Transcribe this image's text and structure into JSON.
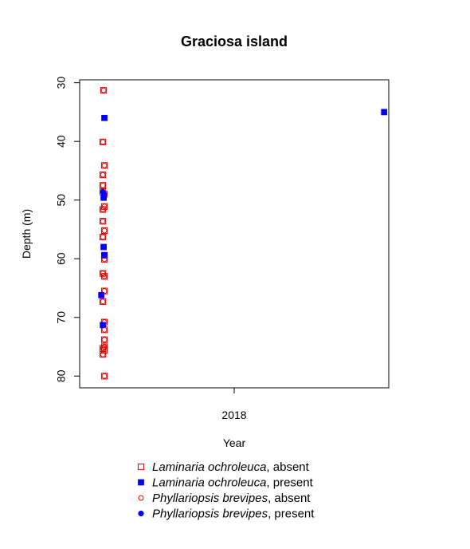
{
  "chart_data": {
    "type": "scatter",
    "title": "Graciosa island",
    "xlabel": "Year",
    "ylabel": "Depth (m)",
    "x_ticks": [
      "2018"
    ],
    "y_ticks": [
      30,
      40,
      50,
      60,
      70,
      80
    ],
    "ylim": [
      82,
      29.5
    ],
    "y_reversed": true,
    "grid": false,
    "legend_position": "bottom",
    "series": [
      {
        "species": "Laminaria ochroleuca",
        "status": "absent",
        "marker": "open-square",
        "color": "#e00000",
        "points": [
          {
            "x": -0.845,
            "y": 31.3
          },
          {
            "x": -0.85,
            "y": 40.1
          },
          {
            "x": -0.84,
            "y": 44.1
          },
          {
            "x": -0.85,
            "y": 45.7
          },
          {
            "x": -0.85,
            "y": 47.5
          },
          {
            "x": -0.85,
            "y": 48.6
          },
          {
            "x": -0.84,
            "y": 49.0
          },
          {
            "x": -0.84,
            "y": 51.1
          },
          {
            "x": -0.85,
            "y": 51.6
          },
          {
            "x": -0.85,
            "y": 53.6
          },
          {
            "x": -0.84,
            "y": 55.2
          },
          {
            "x": -0.85,
            "y": 56.3
          },
          {
            "x": -0.84,
            "y": 59.4
          },
          {
            "x": -0.84,
            "y": 60.1
          },
          {
            "x": -0.85,
            "y": 62.5
          },
          {
            "x": -0.84,
            "y": 63.0
          },
          {
            "x": -0.84,
            "y": 65.5
          },
          {
            "x": -0.85,
            "y": 67.3
          },
          {
            "x": -0.84,
            "y": 70.8
          },
          {
            "x": -0.84,
            "y": 72.1
          },
          {
            "x": -0.84,
            "y": 73.8
          },
          {
            "x": -0.84,
            "y": 75.0
          },
          {
            "x": -0.84,
            "y": 75.6
          },
          {
            "x": -0.85,
            "y": 75.3
          },
          {
            "x": -0.85,
            "y": 76.3
          },
          {
            "x": -0.84,
            "y": 80.0
          }
        ]
      },
      {
        "species": "Laminaria ochroleuca",
        "status": "present",
        "marker": "filled-square",
        "color": "#0000ff",
        "points": [
          {
            "x": -0.84,
            "y": 36.0
          },
          {
            "x": -0.845,
            "y": 49.6
          },
          {
            "x": -0.845,
            "y": 58.0
          },
          {
            "x": -0.84,
            "y": 59.4
          },
          {
            "x": -0.86,
            "y": 66.2
          },
          {
            "x": -0.85,
            "y": 71.3
          },
          {
            "x": 0.97,
            "y": 35.0
          }
        ]
      },
      {
        "species": "Phyllariopsis brevipes",
        "status": "absent",
        "marker": "open-circle",
        "color": "#e00000",
        "points": [
          {
            "x": -0.845,
            "y": 31.3
          },
          {
            "x": -0.85,
            "y": 40.1
          },
          {
            "x": -0.84,
            "y": 44.1
          },
          {
            "x": -0.85,
            "y": 45.7
          },
          {
            "x": -0.85,
            "y": 47.5
          },
          {
            "x": -0.84,
            "y": 51.1
          },
          {
            "x": -0.85,
            "y": 51.6
          },
          {
            "x": -0.85,
            "y": 53.6
          },
          {
            "x": -0.84,
            "y": 55.2
          },
          {
            "x": -0.85,
            "y": 56.3
          },
          {
            "x": -0.84,
            "y": 60.1
          },
          {
            "x": -0.85,
            "y": 62.5
          },
          {
            "x": -0.84,
            "y": 63.0
          },
          {
            "x": -0.84,
            "y": 65.5
          },
          {
            "x": -0.85,
            "y": 67.3
          },
          {
            "x": -0.84,
            "y": 70.8
          },
          {
            "x": -0.84,
            "y": 72.1
          },
          {
            "x": -0.84,
            "y": 73.8
          },
          {
            "x": -0.84,
            "y": 75.0
          },
          {
            "x": -0.85,
            "y": 75.3
          },
          {
            "x": -0.85,
            "y": 76.3
          },
          {
            "x": -0.84,
            "y": 80.0
          }
        ]
      },
      {
        "species": "Phyllariopsis brevipes",
        "status": "present",
        "marker": "filled-circle",
        "color": "#0000ff",
        "points": [
          {
            "x": -0.84,
            "y": 36.0
          },
          {
            "x": -0.85,
            "y": 48.6
          },
          {
            "x": -0.84,
            "y": 49.0
          },
          {
            "x": -0.845,
            "y": 49.6
          },
          {
            "x": -0.845,
            "y": 58.0
          },
          {
            "x": -0.84,
            "y": 59.4
          },
          {
            "x": -0.86,
            "y": 66.2
          },
          {
            "x": -0.85,
            "y": 71.3
          },
          {
            "x": 0.97,
            "y": 35.0
          }
        ]
      }
    ],
    "legend": [
      {
        "species": "Laminaria ochroleuca",
        "suffix": ", absent",
        "marker": "open-square",
        "color": "#e00000"
      },
      {
        "species": "Laminaria ochroleuca",
        "suffix": ", present",
        "marker": "filled-square",
        "color": "#0000ff"
      },
      {
        "species": "Phyllariopsis brevipes",
        "suffix": ", absent",
        "marker": "open-circle",
        "color": "#e00000"
      },
      {
        "species": "Phyllariopsis brevipes",
        "suffix": ", present",
        "marker": "filled-circle",
        "color": "#0000ff"
      }
    ]
  }
}
